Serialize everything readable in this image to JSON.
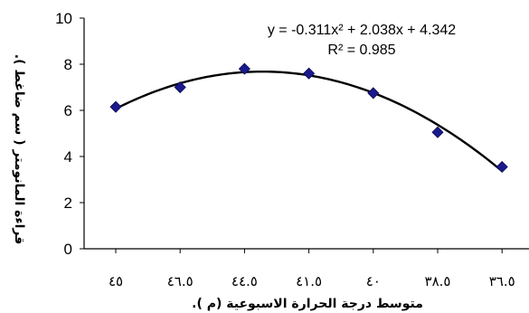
{
  "chart_data": {
    "type": "scatter",
    "categories": [
      "٤٥",
      "٤٦.٥",
      "٤٤.٥",
      "٤١.٥",
      "٤٠",
      "٣٨.٥",
      "٣٦.٥"
    ],
    "points": [
      {
        "x": 1,
        "y": 6.15
      },
      {
        "x": 2,
        "y": 7.0
      },
      {
        "x": 3,
        "y": 7.8
      },
      {
        "x": 4,
        "y": 7.6
      },
      {
        "x": 5,
        "y": 6.75
      },
      {
        "x": 6,
        "y": 5.05
      },
      {
        "x": 7,
        "y": 3.55
      }
    ],
    "trendline": {
      "type": "polynomial",
      "order": 2,
      "a": -0.311,
      "b": 2.038,
      "c": 4.342
    },
    "equation": "y = -0.311x² + 2.038x + 4.342",
    "r2": "R² = 0.985",
    "xlabel": "متوسط درجة الحرارة الاسبوعية (م ).",
    "ylabel": "قراءة المانومتر ( سم ضاغط ).",
    "ylim": [
      0,
      10
    ],
    "yticks": [
      0,
      2,
      4,
      6,
      8,
      10
    ],
    "grid": false,
    "colors": {
      "marker": "#1a1a8c",
      "line": "#000000"
    }
  }
}
